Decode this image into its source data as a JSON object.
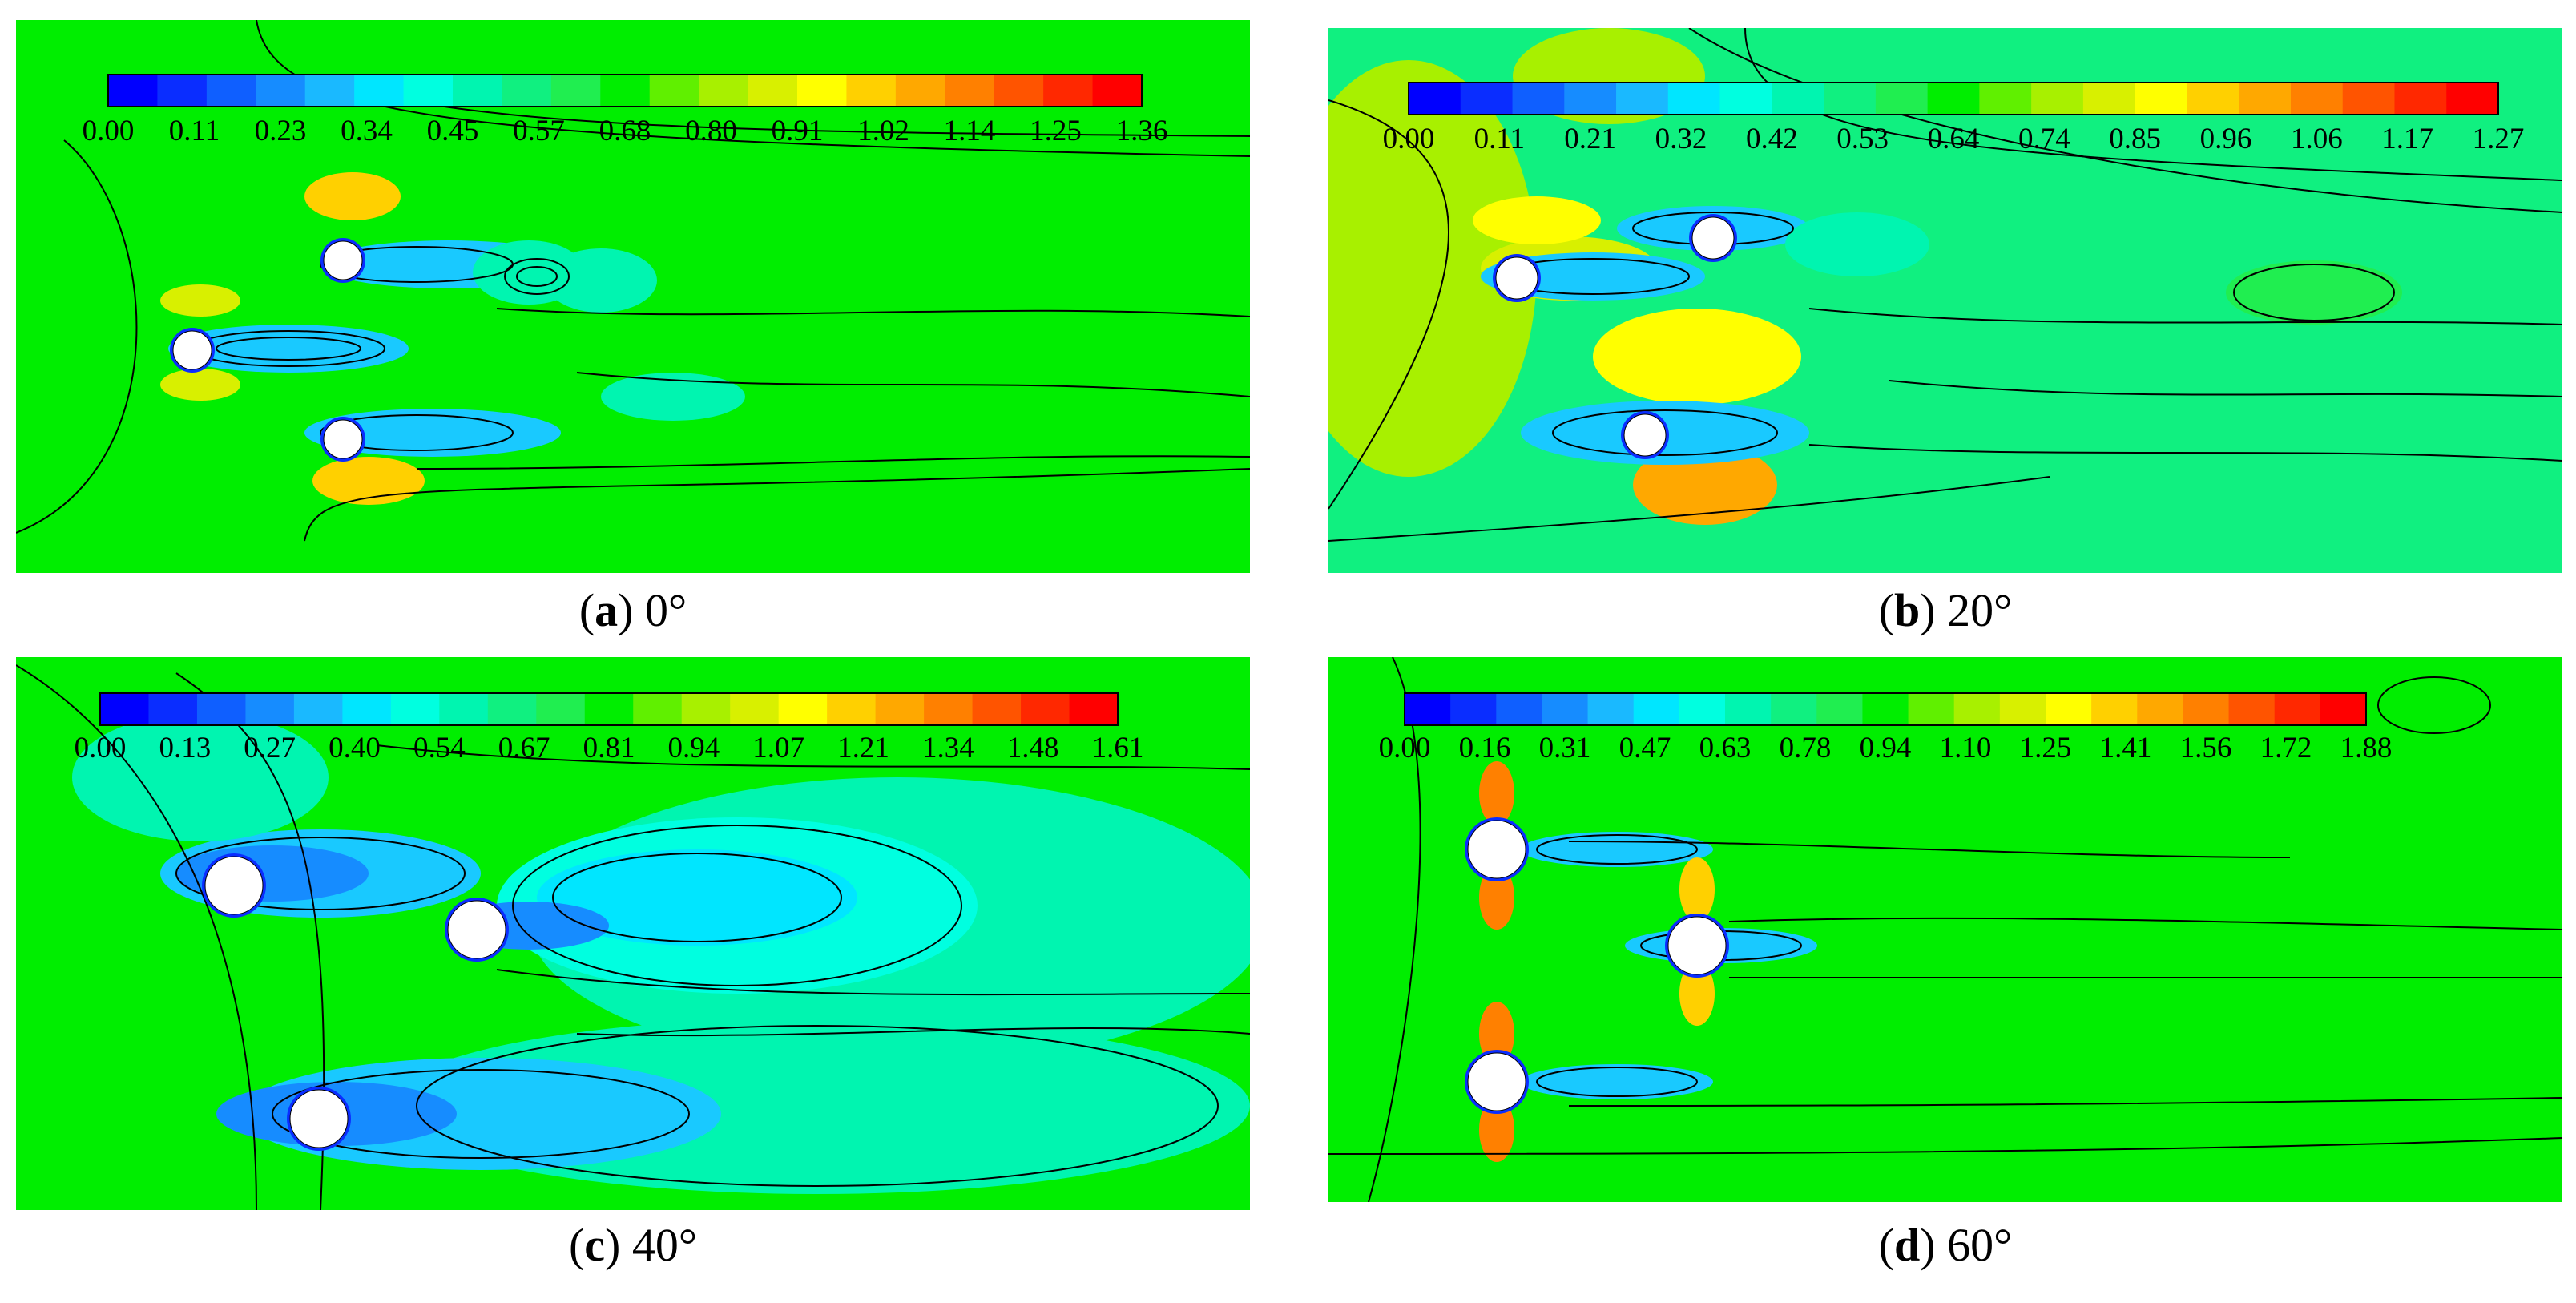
{
  "figure": {
    "panels": [
      {
        "id": "a",
        "caption_letter": "a",
        "caption_text": "0°",
        "colorbar_ticks": [
          "0.00",
          "0.11",
          "0.23",
          "0.34",
          "0.45",
          "0.57",
          "0.68",
          "0.80",
          "0.91",
          "1.02",
          "1.14",
          "1.25",
          "1.36"
        ],
        "colorbar_range": [
          0.0,
          1.36
        ]
      },
      {
        "id": "b",
        "caption_letter": "b",
        "caption_text": "20°",
        "colorbar_ticks": [
          "0.00",
          "0.11",
          "0.21",
          "0.32",
          "0.42",
          "0.53",
          "0.64",
          "0.74",
          "0.85",
          "0.96",
          "1.06",
          "1.17",
          "1.27"
        ],
        "colorbar_range": [
          0.0,
          1.27
        ]
      },
      {
        "id": "c",
        "caption_letter": "c",
        "caption_text": "40°",
        "colorbar_ticks": [
          "0.00",
          "0.13",
          "0.27",
          "0.40",
          "0.54",
          "0.67",
          "0.81",
          "0.94",
          "1.07",
          "1.21",
          "1.34",
          "1.48",
          "1.61"
        ],
        "colorbar_range": [
          0.0,
          1.61
        ]
      },
      {
        "id": "d",
        "caption_letter": "d",
        "caption_text": "60°",
        "colorbar_ticks": [
          "0.00",
          "0.16",
          "0.31",
          "0.47",
          "0.63",
          "0.78",
          "0.94",
          "1.10",
          "1.25",
          "1.41",
          "1.56",
          "1.72",
          "1.88"
        ],
        "colorbar_range": [
          0.0,
          1.88
        ]
      }
    ],
    "colormap": [
      "#0000ff",
      "#0a2dff",
      "#0f5fff",
      "#168cff",
      "#1ab9ff",
      "#00e6ff",
      "#00ffe0",
      "#00f5b0",
      "#10f080",
      "#20ee50",
      "#00ee00",
      "#60f000",
      "#a8f000",
      "#d8f000",
      "#ffff00",
      "#ffd000",
      "#ffa800",
      "#ff8000",
      "#ff5400",
      "#ff2800",
      "#ff0000"
    ],
    "field_background": "#00ee00"
  }
}
